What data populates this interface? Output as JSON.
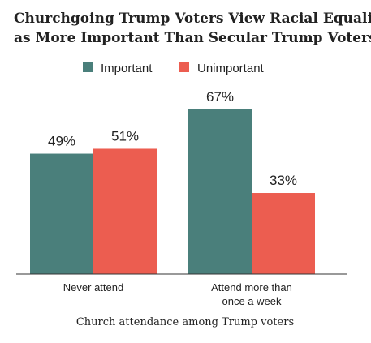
{
  "chart_data": {
    "type": "bar",
    "title": [
      "Churchgoing Trump Voters View Racial Equality",
      "as More Important Than Secular Trump Voters"
    ],
    "categories": [
      [
        "Never attend"
      ],
      [
        "Attend more than",
        "once a week"
      ]
    ],
    "series": [
      {
        "name": "Important",
        "color": "#4a7f7b",
        "values": [
          49,
          67
        ]
      },
      {
        "name": "Unimportant",
        "color": "#ec5d50",
        "values": [
          51,
          33
        ]
      }
    ],
    "value_suffix": "%",
    "xlabel": "Church attendance among Trump voters",
    "ylabel": "",
    "ylim": [
      0,
      100
    ],
    "grid": false,
    "legend_position": "top-center"
  }
}
